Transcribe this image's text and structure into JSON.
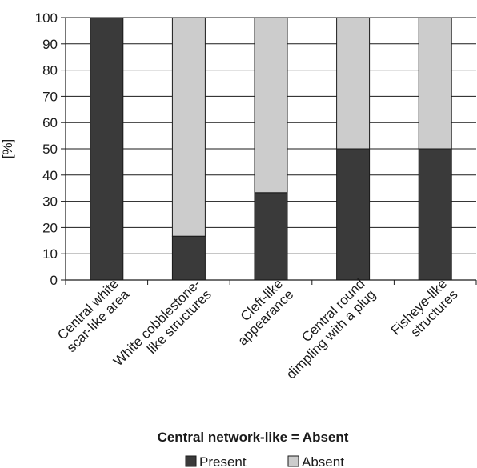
{
  "chart_data": {
    "type": "bar",
    "stacked": true,
    "categories": [
      [
        "Central white",
        "scar-like area"
      ],
      [
        "White cobblestone-",
        "like structures"
      ],
      [
        "Cleft-like",
        "appearance"
      ],
      [
        "Central round",
        "dimpling with a plug"
      ],
      [
        "Fisheye-like",
        "structures"
      ]
    ],
    "series": [
      {
        "name": "Present",
        "color": "#3a3a3a",
        "values": [
          100,
          16.7,
          33.3,
          50,
          50
        ]
      },
      {
        "name": "Absent",
        "color": "#cccccc",
        "values": [
          0,
          83.3,
          66.7,
          50,
          50
        ]
      }
    ],
    "ylabel": "[%]",
    "xlabel": "Central network-like = Absent",
    "ylim": [
      0,
      100
    ],
    "yticks": [
      0,
      10,
      20,
      30,
      40,
      50,
      60,
      70,
      80,
      90,
      100
    ],
    "grid": "horizontal",
    "legend_position": "bottom"
  }
}
